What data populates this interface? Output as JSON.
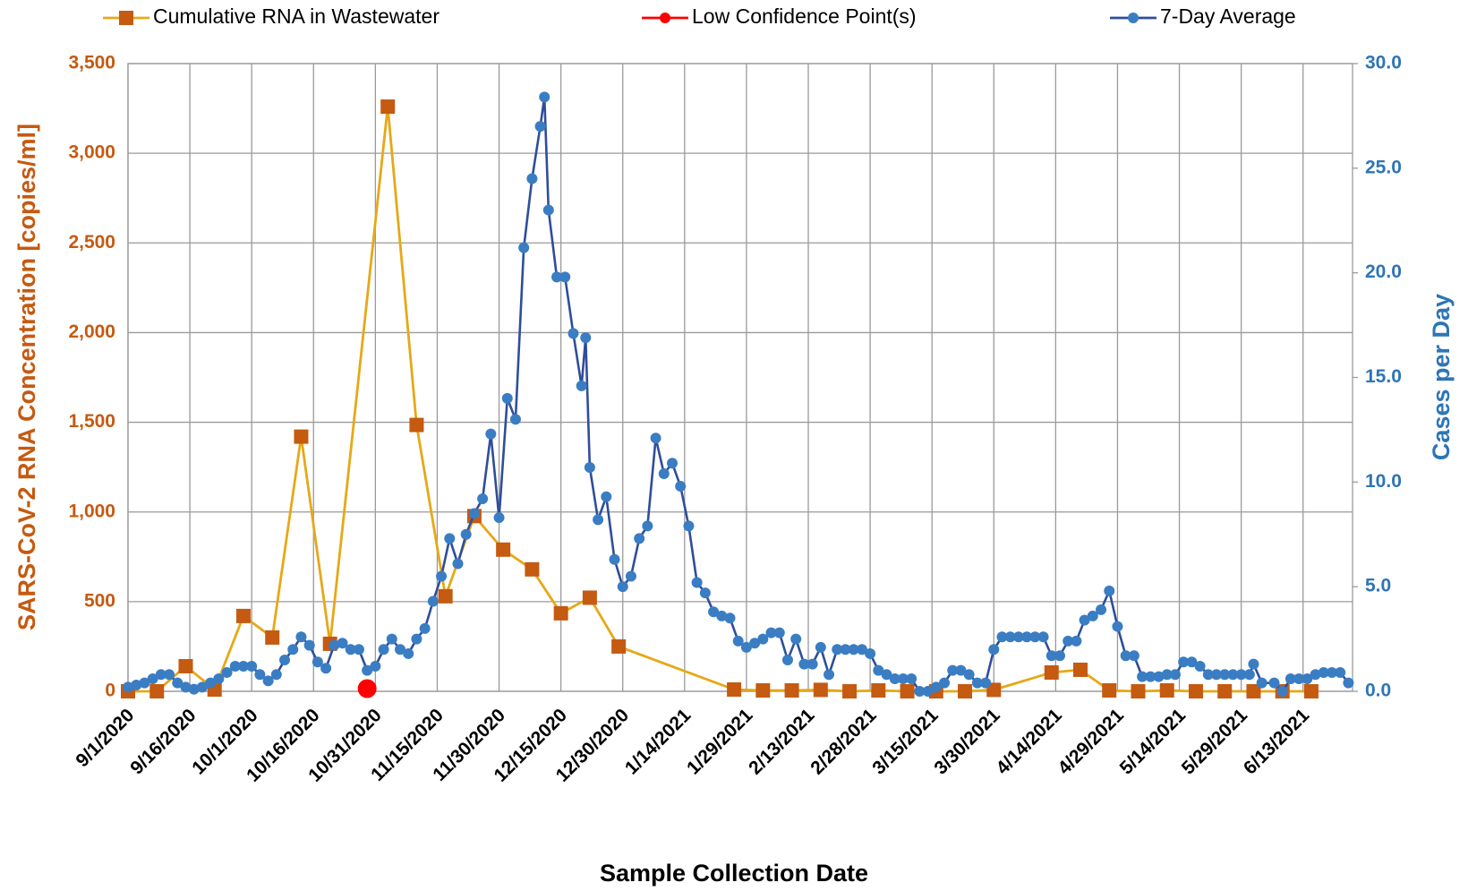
{
  "chart_data": {
    "type": "line",
    "xlabel": "Sample Collection Date",
    "ylabel": "SARS-CoV-2 RNA Concentration [copies/ml]",
    "y2label": "Cases per Day",
    "ylabel_color": "#c55a11",
    "y2label_color": "#2e75b6",
    "grid": true,
    "legend": "top",
    "xlim": [
      "9/1/2020",
      "6/25/2021"
    ],
    "xticks": [
      "9/1/2020",
      "9/16/2020",
      "10/1/2020",
      "10/16/2020",
      "10/31/2020",
      "11/15/2020",
      "11/30/2020",
      "12/15/2020",
      "12/30/2020",
      "1/14/2021",
      "1/29/2021",
      "2/13/2021",
      "2/28/2021",
      "3/15/2021",
      "3/30/2021",
      "4/14/2021",
      "4/29/2021",
      "5/14/2021",
      "5/29/2021",
      "6/13/2021"
    ],
    "ylim": [
      0,
      3500
    ],
    "yticks": [
      0,
      {
        "value": 500,
        "label": "500"
      },
      {
        "value": 1000,
        "label": "1,000"
      },
      {
        "value": 1500,
        "label": "1,500"
      },
      {
        "value": 2000,
        "label": "2,000"
      },
      {
        "value": 2500,
        "label": "2,500"
      },
      {
        "value": 3000,
        "label": "3,000"
      },
      {
        "value": 3500,
        "label": "3,500"
      }
    ],
    "y2lim": [
      0,
      30
    ],
    "y2ticks": [
      {
        "value": 0,
        "label": "0.0"
      },
      {
        "value": 5,
        "label": "5.0"
      },
      {
        "value": 10,
        "label": "10.0"
      },
      {
        "value": 15,
        "label": "15.0"
      },
      {
        "value": 20,
        "label": "20.0"
      },
      {
        "value": 25,
        "label": "25.0"
      },
      {
        "value": 30,
        "label": "30.0"
      }
    ],
    "series": [
      {
        "name": "Cumulative RNA in Wastewater",
        "color": "#e6a817",
        "marker_color": "#c55a11",
        "marker": "square",
        "axis": "y",
        "x": [
          "9/1/2020",
          "9/8/2020",
          "9/15/2020",
          "9/22/2020",
          "9/29/2020",
          "10/6/2020",
          "10/13/2020",
          "10/20/2020",
          "11/3/2020",
          "11/10/2020",
          "11/17/2020",
          "11/24/2020",
          "12/1/2020",
          "12/8/2020",
          "12/15/2020",
          "12/22/2020",
          "12/29/2020",
          "1/26/2021",
          "2/2/2021",
          "2/9/2021",
          "2/16/2021",
          "2/23/2021",
          "3/2/2021",
          "3/9/2021",
          "3/16/2021",
          "3/23/2021",
          "3/30/2021",
          "4/13/2021",
          "4/20/2021",
          "4/27/2021",
          "5/4/2021",
          "5/11/2021",
          "5/18/2021",
          "5/25/2021",
          "6/1/2021",
          "6/8/2021",
          "6/15/2021"
        ],
        "values": [
          0,
          0,
          140,
          10,
          420,
          300,
          1420,
          265,
          3260,
          1485,
          530,
          977,
          790,
          680,
          435,
          522,
          250,
          10,
          5,
          5,
          8,
          0,
          5,
          0,
          0,
          0,
          8,
          105,
          120,
          5,
          0,
          5,
          0,
          0,
          0,
          0,
          0
        ]
      },
      {
        "name": "Low Confidence Point(s)",
        "color": "#ff0000",
        "marker_color": "#ff0000",
        "marker": "circle-large",
        "axis": "y",
        "x": [
          "10/29/2020"
        ],
        "values": [
          15
        ]
      },
      {
        "name": "7-Day Average",
        "color": "#2f4e9a",
        "marker_color": "#3a7dc3",
        "marker": "circle",
        "axis": "y2",
        "x": [
          "9/1/2020",
          "9/3/2020",
          "9/5/2020",
          "9/7/2020",
          "9/9/2020",
          "9/11/2020",
          "9/13/2020",
          "9/15/2020",
          "9/17/2020",
          "9/19/2020",
          "9/21/2020",
          "9/23/2020",
          "9/25/2020",
          "9/27/2020",
          "9/29/2020",
          "10/1/2020",
          "10/3/2020",
          "10/5/2020",
          "10/7/2020",
          "10/9/2020",
          "10/11/2020",
          "10/13/2020",
          "10/15/2020",
          "10/17/2020",
          "10/19/2020",
          "10/21/2020",
          "10/23/2020",
          "10/25/2020",
          "10/27/2020",
          "10/29/2020",
          "10/31/2020",
          "11/2/2020",
          "11/4/2020",
          "11/6/2020",
          "11/8/2020",
          "11/10/2020",
          "11/12/2020",
          "11/14/2020",
          "11/16/2020",
          "11/18/2020",
          "11/20/2020",
          "11/22/2020",
          "11/24/2020",
          "11/26/2020",
          "11/28/2020",
          "11/30/2020",
          "12/2/2020",
          "12/4/2020",
          "12/6/2020",
          "12/8/2020",
          "12/10/2020",
          "12/11/2020",
          "12/12/2020",
          "12/14/2020",
          "12/16/2020",
          "12/18/2020",
          "12/20/2020",
          "12/21/2020",
          "12/22/2020",
          "12/24/2020",
          "12/26/2020",
          "12/28/2020",
          "12/30/2020",
          "1/1/2021",
          "1/3/2021",
          "1/5/2021",
          "1/7/2021",
          "1/9/2021",
          "1/11/2021",
          "1/13/2021",
          "1/15/2021",
          "1/17/2021",
          "1/19/2021",
          "1/21/2021",
          "1/23/2021",
          "1/25/2021",
          "1/27/2021",
          "1/29/2021",
          "1/31/2021",
          "2/2/2021",
          "2/4/2021",
          "2/6/2021",
          "2/8/2021",
          "2/10/2021",
          "2/12/2021",
          "2/14/2021",
          "2/16/2021",
          "2/18/2021",
          "2/20/2021",
          "2/22/2021",
          "2/24/2021",
          "2/26/2021",
          "2/28/2021",
          "3/2/2021",
          "3/4/2021",
          "3/6/2021",
          "3/8/2021",
          "3/10/2021",
          "3/12/2021",
          "3/14/2021",
          "3/16/2021",
          "3/18/2021",
          "3/20/2021",
          "3/22/2021",
          "3/24/2021",
          "3/26/2021",
          "3/28/2021",
          "3/30/2021",
          "4/1/2021",
          "4/3/2021",
          "4/5/2021",
          "4/7/2021",
          "4/9/2021",
          "4/11/2021",
          "4/13/2021",
          "4/15/2021",
          "4/17/2021",
          "4/19/2021",
          "4/21/2021",
          "4/23/2021",
          "4/25/2021",
          "4/27/2021",
          "4/29/2021",
          "5/1/2021",
          "5/3/2021",
          "5/5/2021",
          "5/7/2021",
          "5/9/2021",
          "5/11/2021",
          "5/13/2021",
          "5/15/2021",
          "5/17/2021",
          "5/19/2021",
          "5/21/2021",
          "5/23/2021",
          "5/25/2021",
          "5/27/2021",
          "5/29/2021",
          "5/31/2021",
          "6/1/2021",
          "6/3/2021",
          "6/6/2021",
          "6/8/2021",
          "6/10/2021",
          "6/12/2021",
          "6/14/2021",
          "6/16/2021",
          "6/18/2021",
          "6/20/2021",
          "6/22/2021",
          "6/24/2021"
        ],
        "values": [
          0.2,
          0.3,
          0.4,
          0.6,
          0.8,
          0.8,
          0.4,
          0.2,
          0.1,
          0.2,
          0.4,
          0.6,
          0.9,
          1.2,
          1.2,
          1.2,
          0.8,
          0.5,
          0.8,
          1.5,
          2.0,
          2.6,
          2.2,
          1.4,
          1.1,
          2.2,
          2.3,
          2.0,
          2.0,
          1.0,
          1.2,
          2.0,
          2.5,
          2.0,
          1.8,
          2.5,
          3.0,
          4.3,
          5.5,
          7.3,
          6.1,
          7.5,
          8.5,
          9.2,
          12.3,
          8.3,
          14.0,
          13.0,
          21.2,
          24.5,
          27.0,
          28.4,
          23.0,
          19.8,
          19.8,
          17.1,
          14.6,
          16.9,
          10.7,
          8.2,
          9.3,
          6.3,
          5.0,
          5.5,
          7.3,
          7.9,
          12.1,
          10.4,
          10.9,
          9.8,
          7.9,
          5.2,
          4.7,
          3.8,
          3.6,
          3.5,
          2.4,
          2.1,
          2.3,
          2.5,
          2.8,
          2.8,
          1.5,
          2.5,
          1.3,
          1.3,
          2.1,
          0.8,
          2.0,
          2.0,
          2.0,
          2.0,
          1.8,
          1.0,
          0.8,
          0.6,
          0.6,
          0.6,
          0.0,
          0.0,
          0.2,
          0.4,
          1.0,
          1.0,
          0.8,
          0.4,
          0.4,
          2.0,
          2.6,
          2.6,
          2.6,
          2.6,
          2.6,
          2.6,
          1.7,
          1.7,
          2.4,
          2.4,
          3.4,
          3.6,
          3.9,
          4.8,
          3.1,
          1.7,
          1.7,
          0.7,
          0.7,
          0.7,
          0.8,
          0.8,
          1.4,
          1.4,
          1.2,
          0.8,
          0.8,
          0.8,
          0.8,
          0.8,
          0.8,
          1.3,
          0.4,
          0.4,
          0.0,
          0.6,
          0.6,
          0.6,
          0.8,
          0.9,
          0.9,
          0.9,
          0.4
        ]
      }
    ]
  }
}
